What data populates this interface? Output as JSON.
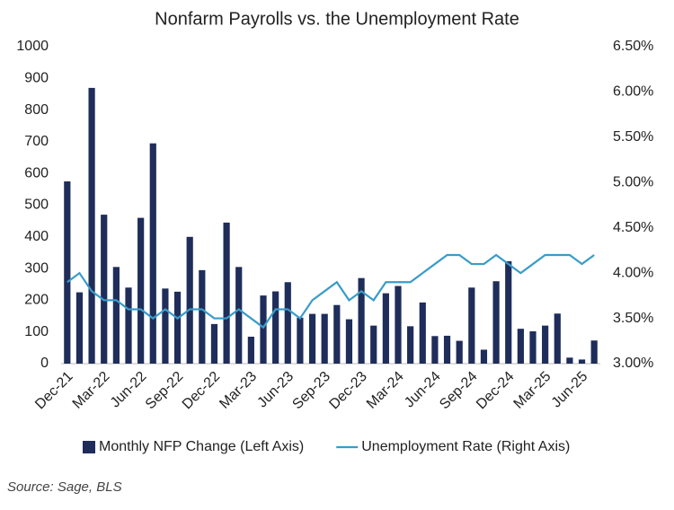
{
  "chart_data": {
    "type": "bar-line",
    "title": "Nonfarm Payrolls vs. the Unemployment Rate",
    "source": "Source: Sage, BLS",
    "categories": [
      "Dec-21",
      null,
      null,
      "Mar-22",
      null,
      null,
      "Jun-22",
      null,
      null,
      "Sep-22",
      null,
      null,
      "Dec-22",
      null,
      null,
      "Mar-23",
      null,
      null,
      "Jun-23",
      null,
      null,
      "Sep-23",
      null,
      null,
      "Dec-23",
      null,
      null,
      "Mar-24",
      null,
      null,
      "Jun-24",
      null,
      null,
      "Sep-24",
      null,
      null,
      "Dec-24",
      null,
      null,
      "Mar-25",
      null,
      null,
      "Jun-25",
      null
    ],
    "series": [
      {
        "name": "Monthly NFP Change (Left Axis)",
        "type": "bar",
        "color": "#1f2d5a",
        "values": [
          575,
          225,
          870,
          470,
          305,
          240,
          460,
          695,
          237,
          227,
          400,
          295,
          125,
          445,
          305,
          85,
          215,
          228,
          257,
          145,
          157,
          157,
          185,
          140,
          270,
          120,
          222,
          245,
          118,
          193,
          87,
          88,
          72,
          240,
          44,
          260,
          323,
          110,
          102,
          120,
          158,
          19,
          13,
          73
        ]
      },
      {
        "name": "Unemployment Rate (Right Axis)",
        "type": "line",
        "axis": "y2",
        "color": "#3a9cc8",
        "values": [
          3.9,
          4.0,
          3.8,
          3.7,
          3.7,
          3.6,
          3.6,
          3.5,
          3.6,
          3.5,
          3.6,
          3.6,
          3.5,
          3.5,
          3.6,
          3.5,
          3.4,
          3.6,
          3.6,
          3.5,
          3.7,
          3.8,
          3.9,
          3.7,
          3.8,
          3.7,
          3.9,
          3.9,
          3.9,
          4.0,
          4.1,
          4.2,
          4.2,
          4.1,
          4.1,
          4.2,
          4.1,
          4.0,
          4.1,
          4.2,
          4.2,
          4.2,
          4.1,
          4.2
        ]
      }
    ],
    "ylim": [
      0,
      1000
    ],
    "yticks": [
      0,
      100,
      200,
      300,
      400,
      500,
      600,
      700,
      800,
      900,
      1000
    ],
    "y2lim": [
      3.0,
      6.5
    ],
    "y2ticks": [
      {
        "value": 3.0,
        "label": "3.00%"
      },
      {
        "value": 3.5,
        "label": "3.50%"
      },
      {
        "value": 4.0,
        "label": "4.00%"
      },
      {
        "value": 4.5,
        "label": "4.50%"
      },
      {
        "value": 5.0,
        "label": "5.00%"
      },
      {
        "value": 5.5,
        "label": "5.50%"
      },
      {
        "value": 6.0,
        "label": "6.00%"
      },
      {
        "value": 6.5,
        "label": "6.50%"
      }
    ],
    "legend": "bottom"
  }
}
